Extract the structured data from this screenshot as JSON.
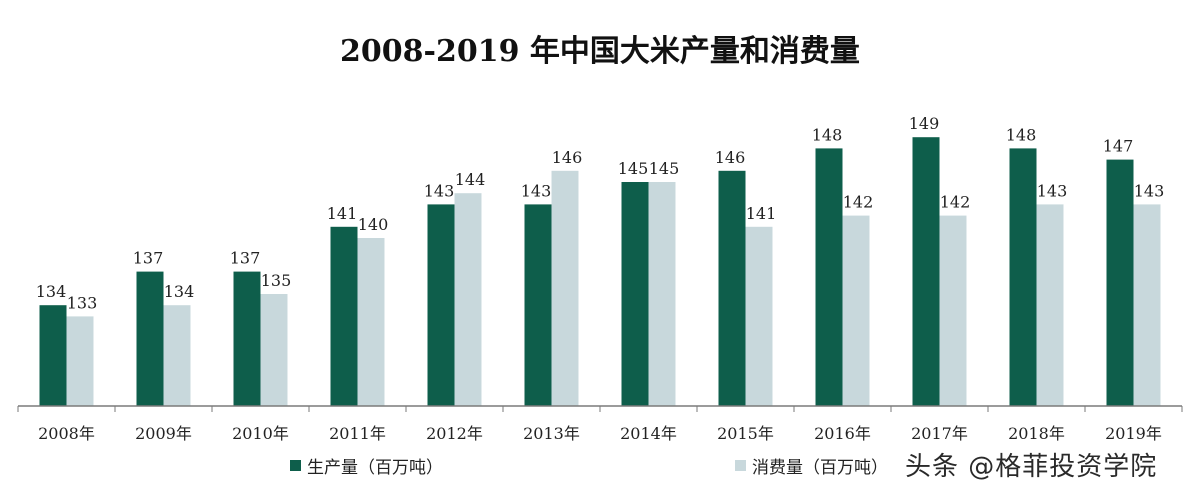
{
  "chart_data": {
    "type": "bar",
    "title": "2008-2019 年中国大米产量和消费量",
    "categories": [
      "2008年",
      "2009年",
      "2010年",
      "2011年",
      "2012年",
      "2013年",
      "2014年",
      "2015年",
      "2016年",
      "2017年",
      "2018年",
      "2019年"
    ],
    "series": [
      {
        "name": "生产量（百万吨）",
        "color": "#0e5e4b",
        "values": [
          134,
          137,
          137,
          141,
          143,
          143,
          145,
          146,
          148,
          149,
          148,
          147
        ]
      },
      {
        "name": "消费量（百万吨）",
        "color": "#c8d8dc",
        "values": [
          133,
          134,
          135,
          140,
          144,
          146,
          145,
          141,
          142,
          142,
          143,
          143
        ]
      }
    ],
    "ylim": [
      125,
      153
    ],
    "grid": false,
    "legend_placement": "bottom"
  },
  "watermark": "头条 @格菲投资学院"
}
